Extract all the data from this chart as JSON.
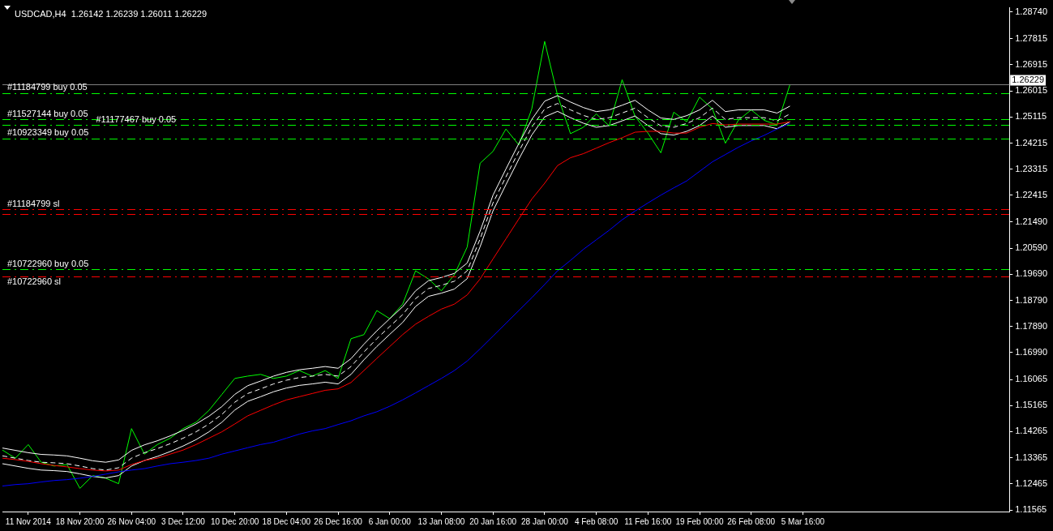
{
  "chart_data": {
    "type": "line",
    "title": "USDCAD,H4  1.26142 1.26239 1.26011 1.26229",
    "categories": [
      null,
      null,
      "11 Nov 2014",
      null,
      null,
      null,
      "18 Nov 20:00",
      null,
      null,
      null,
      "26 Nov 04:00",
      null,
      null,
      null,
      "3 Dec 12:00",
      null,
      null,
      null,
      "10 Dec 20:00",
      null,
      null,
      null,
      "18 Dec 04:00",
      null,
      null,
      null,
      "26 Dec 16:00",
      null,
      null,
      null,
      "6 Jan 00:00",
      null,
      null,
      null,
      "13 Jan 08:00",
      null,
      null,
      null,
      "20 Jan 16:00",
      null,
      null,
      null,
      "28 Jan 00:00",
      null,
      null,
      null,
      "4 Feb 08:00",
      null,
      null,
      null,
      "11 Feb 16:00",
      null,
      null,
      null,
      "19 Feb 00:00",
      null,
      null,
      null,
      "26 Feb 08:00",
      null,
      null,
      null,
      "5 Mar 16:00",
      null,
      null,
      null,
      null,
      null,
      null,
      null,
      null,
      null,
      null,
      null,
      null,
      null,
      null,
      null,
      null
    ],
    "series": [
      {
        "color": "#0000ff",
        "values": [
          1.1239,
          1.1244,
          1.1247,
          1.1253,
          1.1258,
          1.1261,
          1.1266,
          1.1272,
          1.128,
          1.1288,
          1.1294,
          1.1299,
          1.1308,
          1.1316,
          1.1321,
          1.1327,
          1.1335,
          1.1349,
          1.136,
          1.1371,
          1.1382,
          1.139,
          1.1404,
          1.1418,
          1.1429,
          1.1437,
          1.1451,
          1.1464,
          1.1481,
          1.1495,
          1.1514,
          1.1536,
          1.156,
          1.1585,
          1.161,
          1.1637,
          1.167,
          1.1712,
          1.1756,
          1.18,
          1.1844,
          1.1888,
          1.1934,
          1.1981,
          1.2017,
          1.2055,
          1.2088,
          1.2121,
          1.2157,
          1.2187,
          1.2215,
          1.2242,
          1.2267,
          1.2291,
          1.2324,
          1.2357,
          1.2382,
          1.2407,
          1.2429,
          1.2448,
          1.247,
          1.2489,
          null,
          null,
          null,
          null,
          null,
          null,
          null,
          null,
          null,
          null,
          null,
          null,
          null,
          null,
          null,
          null,
          null
        ]
      },
      {
        "color": "#ff0000",
        "values": [
          1.1335,
          1.133,
          1.1324,
          1.1316,
          1.131,
          1.1305,
          1.1299,
          1.1294,
          1.1291,
          1.1294,
          1.1313,
          1.1327,
          1.1335,
          1.1349,
          1.1363,
          1.1382,
          1.1404,
          1.1426,
          1.1453,
          1.1481,
          1.15,
          1.1519,
          1.1536,
          1.1547,
          1.1558,
          1.1569,
          1.1574,
          1.1596,
          1.1637,
          1.1679,
          1.172,
          1.1761,
          1.1797,
          1.1824,
          1.1849,
          1.1866,
          1.1898,
          1.1953,
          1.2022,
          1.2091,
          1.216,
          1.2228,
          1.2283,
          1.2344,
          1.2371,
          1.2385,
          1.2404,
          1.2423,
          1.244,
          1.2459,
          1.2462,
          1.2462,
          1.2456,
          1.2456,
          1.2476,
          1.2489,
          1.2484,
          1.2487,
          1.2487,
          1.2487,
          1.2487,
          1.2495,
          null,
          null,
          null,
          null,
          null,
          null,
          null,
          null,
          null,
          null,
          null,
          null,
          null,
          null,
          null,
          null,
          null
        ]
      },
      {
        "color": "#ffffff",
        "values": [
          1.137,
          1.1362,
          1.1354,
          1.1348,
          1.1346,
          1.1343,
          1.1335,
          1.1326,
          1.1321,
          1.1329,
          1.1362,
          1.1381,
          1.1395,
          1.1412,
          1.1431,
          1.1453,
          1.148,
          1.1513,
          1.1555,
          1.1585,
          1.1601,
          1.1618,
          1.1631,
          1.164,
          1.1645,
          1.1651,
          1.1645,
          1.1678,
          1.1728,
          1.1774,
          1.1816,
          1.1857,
          1.1912,
          1.1947,
          1.1958,
          1.1972,
          1.2008,
          1.2118,
          1.2242,
          1.2332,
          1.242,
          1.2503,
          1.2566,
          1.2585,
          1.2563,
          1.2544,
          1.253,
          1.2536,
          1.2552,
          1.2569,
          1.2536,
          1.2508,
          1.2503,
          1.2516,
          1.2536,
          1.2569,
          1.253,
          1.2536,
          1.2536,
          1.2536,
          1.2525,
          1.2549,
          null,
          null,
          null,
          null,
          null,
          null,
          null,
          null,
          null,
          null,
          null,
          null,
          null,
          null,
          null,
          null,
          null
        ]
      },
      {
        "color": "#ffffff",
        "line_style": "dashed",
        "values": [
          1.1343,
          1.1335,
          1.1327,
          1.1321,
          1.1319,
          1.1316,
          1.1308,
          1.1299,
          1.1294,
          1.1302,
          1.1335,
          1.1354,
          1.1368,
          1.1385,
          1.1404,
          1.1426,
          1.1453,
          1.1486,
          1.1528,
          1.1558,
          1.1574,
          1.1591,
          1.1604,
          1.1613,
          1.1618,
          1.1624,
          1.1618,
          1.1651,
          1.1701,
          1.1747,
          1.1789,
          1.183,
          1.1885,
          1.192,
          1.1931,
          1.1945,
          1.1981,
          1.2091,
          1.2215,
          1.2305,
          1.2393,
          1.2476,
          1.2539,
          1.2558,
          1.2536,
          1.2517,
          1.2503,
          1.2509,
          1.2525,
          1.2542,
          1.2509,
          1.2481,
          1.2476,
          1.2489,
          1.2509,
          1.2542,
          1.2503,
          1.2509,
          1.2509,
          1.2509,
          1.2498,
          1.2522,
          null,
          null,
          null,
          null,
          null,
          null,
          null,
          null,
          null,
          null,
          null,
          null,
          null,
          null,
          null,
          null,
          null
        ]
      },
      {
        "color": "#ffffff",
        "values": [
          1.1316,
          1.1308,
          1.13,
          1.1294,
          1.1292,
          1.1289,
          1.1281,
          1.1272,
          1.1267,
          1.1275,
          1.1308,
          1.1327,
          1.1341,
          1.1358,
          1.1377,
          1.1399,
          1.1426,
          1.1459,
          1.1501,
          1.1531,
          1.1547,
          1.1564,
          1.1577,
          1.1586,
          1.1591,
          1.1597,
          1.1591,
          1.1624,
          1.1674,
          1.172,
          1.1762,
          1.1803,
          1.1858,
          1.1893,
          1.1904,
          1.1918,
          1.1954,
          1.2064,
          1.2188,
          1.2278,
          1.2366,
          1.2449,
          1.2512,
          1.2531,
          1.2509,
          1.249,
          1.2476,
          1.2482,
          1.2498,
          1.2515,
          1.2482,
          1.2454,
          1.2449,
          1.2462,
          1.2482,
          1.2515,
          1.2476,
          1.2482,
          1.2482,
          1.2482,
          1.2471,
          1.2495,
          null,
          null,
          null,
          null,
          null,
          null,
          null,
          null,
          null,
          null,
          null,
          null,
          null,
          null,
          null,
          null,
          null
        ]
      },
      {
        "color": "#00ff00",
        "values": [
          1.1363,
          1.1335,
          1.1382,
          1.1321,
          1.1308,
          1.1313,
          1.1231,
          1.1275,
          1.1266,
          1.1247,
          1.1437,
          1.1349,
          1.1382,
          1.1404,
          1.1437,
          1.1459,
          1.15,
          1.1555,
          1.161,
          1.1618,
          1.1624,
          1.161,
          1.1618,
          1.1637,
          1.1618,
          1.1637,
          1.161,
          1.1747,
          1.1761,
          1.1844,
          1.1816,
          1.1866,
          1.1981,
          1.1953,
          1.1912,
          1.1967,
          1.2063,
          1.2352,
          1.2393,
          1.247,
          1.2415,
          1.2539,
          1.2772,
          1.2586,
          1.2454,
          1.2476,
          1.2522,
          1.2481,
          1.264,
          1.2514,
          1.2456,
          1.2388,
          1.2528,
          1.2495,
          1.258,
          1.2539,
          1.2421,
          1.25,
          1.2536,
          1.25,
          1.2484,
          1.2623,
          null,
          null,
          null,
          null,
          null,
          null,
          null,
          null,
          null,
          null,
          null,
          null,
          null,
          null,
          null,
          null,
          null
        ]
      }
    ],
    "ylim": [
      1.1151,
      1.2888
    ],
    "yticks": [
      {
        "value": 1.2874,
        "label": "1.28740"
      },
      1.27815,
      1.26915,
      1.26015,
      1.25115,
      1.24215,
      1.23315,
      1.22415,
      {
        "value": 1.2149,
        "label": "1.21490"
      },
      {
        "value": 1.2059,
        "label": "1.20590"
      },
      {
        "value": 1.1969,
        "label": "1.19690"
      },
      {
        "value": 1.1879,
        "label": "1.18790"
      },
      {
        "value": 1.1789,
        "label": "1.17890"
      },
      {
        "value": 1.1699,
        "label": "1.16990"
      },
      1.16065,
      1.15165,
      1.14265,
      1.13365,
      1.12465,
      1.11565
    ],
    "ref_lines": [
      {
        "axis": "y",
        "value": 1.26229,
        "label": "1.26229",
        "color": "#808080",
        "line_style": "solid"
      },
      {
        "axis": "y",
        "value": 1.2594,
        "label": "#11184799 buy 0.05",
        "color": "#00ff00",
        "line_style": "dashed"
      },
      {
        "axis": "y",
        "value": 1.2503,
        "label": "#11527144 buy 0.05",
        "color": "#00ff00",
        "line_style": "dashed"
      },
      {
        "axis": "y",
        "value": 1.2484,
        "label": "#11177467 buy 0.05",
        "color": "#00ff00",
        "line_style": "dashed"
      },
      {
        "axis": "y",
        "value": 1.2437,
        "label": "#10923349 buy 0.05",
        "color": "#00ff00",
        "line_style": "dashed"
      },
      {
        "axis": "y",
        "value": 1.2193,
        "label": "#11184799 sl",
        "color": "#ff0000",
        "line_style": "dashed"
      },
      {
        "axis": "y",
        "value": 1.2176,
        "label": null,
        "color": "#ff0000",
        "line_style": "dashed"
      },
      {
        "axis": "y",
        "value": 1.1986,
        "label": "#10722960 buy 0.05",
        "color": "#00ff00",
        "line_style": "dashed"
      },
      {
        "axis": "y",
        "value": 1.1962,
        "label": "#10722960 sl",
        "color": "#ff0000",
        "line_style": "dashed"
      }
    ],
    "grid": false,
    "legend": false,
    "marker": "none",
    "line_style": "solid"
  }
}
